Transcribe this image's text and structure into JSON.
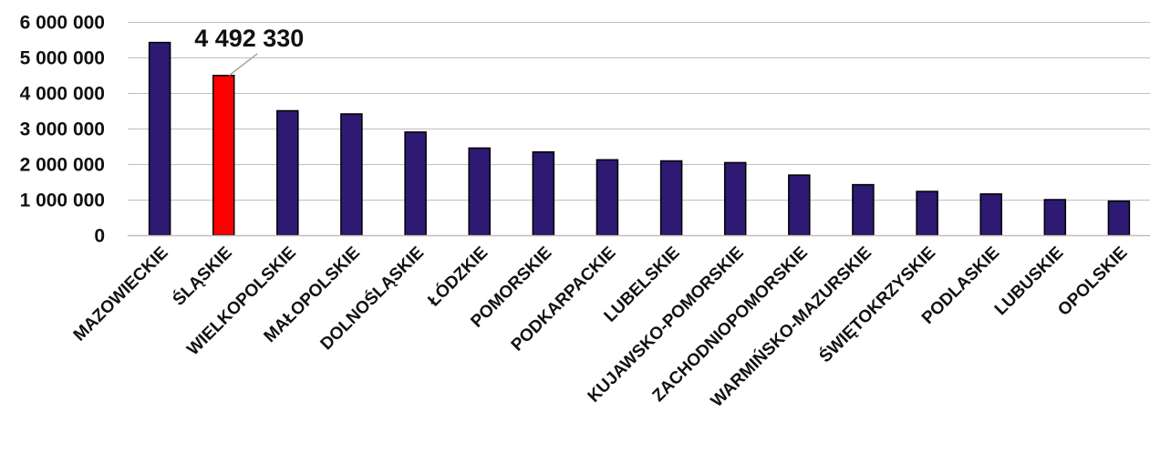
{
  "chart_data": {
    "type": "bar",
    "title": "",
    "xlabel": "",
    "ylabel": "",
    "categories": [
      "MAZOWIECKIE",
      "ŚLĄSKIE",
      "WIELKOPOLSKIE",
      "MAŁOPOLSKIE",
      "DOLNOŚLĄSKIE",
      "ŁÓDZKIE",
      "POMORSKIE",
      "PODKARPACKIE",
      "LUBELSKIE",
      "KUJAWSKO-POMORSKIE",
      "ZACHODNIOPOMORSKIE",
      "WARMIŃSKO-MAZURSKIE",
      "ŚWIĘTOKRZYSKIE",
      "PODLASKIE",
      "LUBUSKIE",
      "OPOLSKIE"
    ],
    "values": [
      5420000,
      4492330,
      3500000,
      3410000,
      2900000,
      2450000,
      2340000,
      2120000,
      2090000,
      2040000,
      1690000,
      1420000,
      1230000,
      1160000,
      1000000,
      960000
    ],
    "ylim": [
      0,
      6000000
    ],
    "yticks": [
      0,
      1000000,
      2000000,
      3000000,
      4000000,
      5000000,
      6000000
    ],
    "ytick_labels": [
      "0",
      "1 000 000",
      "2 000 000",
      "3 000 000",
      "4 000 000",
      "5 000 000",
      "6 000 000"
    ],
    "grid": true,
    "legend": "none",
    "highlight_index": 1,
    "annotations": [
      {
        "category_index": 1,
        "text": "4 492 330"
      }
    ],
    "colors": {
      "bar": "#2E1A73",
      "highlight": "#FF0000",
      "bar_edge": "#000000",
      "grid": "#BFBFBF",
      "leader": "#A6A6A6"
    }
  }
}
